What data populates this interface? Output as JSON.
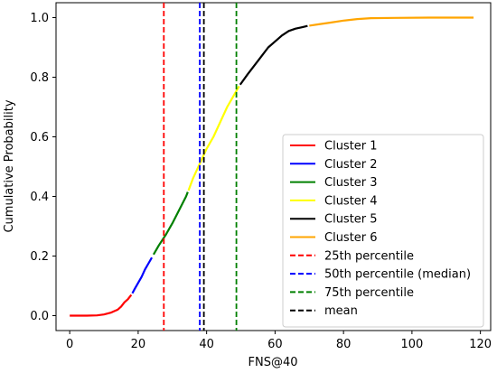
{
  "chart_data": {
    "type": "line",
    "title": "",
    "xlabel": "FNS@40",
    "ylabel": "Cumulative Probability",
    "xlim": [
      -4,
      123
    ],
    "ylim": [
      -0.05,
      1.05
    ],
    "xticks": [
      0,
      20,
      40,
      60,
      80,
      100,
      120
    ],
    "yticks": [
      0.0,
      0.2,
      0.4,
      0.6,
      0.8,
      1.0
    ],
    "grid": false,
    "legend_position": "lower-right",
    "series": [
      {
        "name": "Cluster 1",
        "color": "#ff0000",
        "style": "solid",
        "points": [
          [
            0,
            0.0
          ],
          [
            5,
            0.0
          ],
          [
            8,
            0.001
          ],
          [
            10,
            0.004
          ],
          [
            12,
            0.01
          ],
          [
            14,
            0.02
          ],
          [
            15,
            0.03
          ],
          [
            16,
            0.045
          ],
          [
            17,
            0.055
          ],
          [
            18,
            0.07
          ]
        ]
      },
      {
        "name": "Cluster 2",
        "color": "#0000ff",
        "style": "solid",
        "points": [
          [
            18.3,
            0.075
          ],
          [
            19,
            0.09
          ],
          [
            20,
            0.11
          ],
          [
            21,
            0.13
          ],
          [
            22,
            0.155
          ],
          [
            23,
            0.175
          ],
          [
            24,
            0.195
          ]
        ]
      },
      {
        "name": "Cluster 3",
        "color": "#008000",
        "style": "solid",
        "points": [
          [
            24.5,
            0.205
          ],
          [
            26,
            0.235
          ],
          [
            28,
            0.27
          ],
          [
            30,
            0.31
          ],
          [
            32,
            0.355
          ],
          [
            34,
            0.4
          ],
          [
            34.5,
            0.415
          ]
        ]
      },
      {
        "name": "Cluster 4",
        "color": "#ffff00",
        "style": "solid",
        "points": [
          [
            34.7,
            0.42
          ],
          [
            36,
            0.46
          ],
          [
            38,
            0.51
          ],
          [
            40,
            0.56
          ],
          [
            42,
            0.6
          ],
          [
            44,
            0.65
          ],
          [
            46,
            0.7
          ],
          [
            48,
            0.74
          ],
          [
            49.5,
            0.77
          ]
        ]
      },
      {
        "name": "Cluster 5",
        "color": "#000000",
        "style": "solid",
        "points": [
          [
            49.8,
            0.775
          ],
          [
            52,
            0.81
          ],
          [
            54,
            0.84
          ],
          [
            56,
            0.87
          ],
          [
            58,
            0.9
          ],
          [
            60,
            0.92
          ],
          [
            62,
            0.94
          ],
          [
            64,
            0.955
          ],
          [
            66,
            0.963
          ],
          [
            68,
            0.968
          ],
          [
            69.5,
            0.972
          ]
        ]
      },
      {
        "name": "Cluster 6",
        "color": "#ffa500",
        "style": "solid",
        "points": [
          [
            70,
            0.973
          ],
          [
            73,
            0.978
          ],
          [
            76,
            0.983
          ],
          [
            80,
            0.99
          ],
          [
            84,
            0.995
          ],
          [
            88,
            0.998
          ],
          [
            95,
            0.999
          ],
          [
            105,
            1.0
          ],
          [
            118,
            1.0
          ]
        ]
      }
    ],
    "vlines": [
      {
        "name": "25th percentile",
        "x": 27.5,
        "color": "#ff0000",
        "style": "dashed"
      },
      {
        "name": "50th percentile (median)",
        "x": 38,
        "color": "#0000ff",
        "style": "dashed"
      },
      {
        "name": "75th percentile",
        "x": 48.7,
        "color": "#008000",
        "style": "dashed"
      },
      {
        "name": "mean",
        "x": 39.2,
        "color": "#000000",
        "style": "dashed"
      }
    ]
  }
}
